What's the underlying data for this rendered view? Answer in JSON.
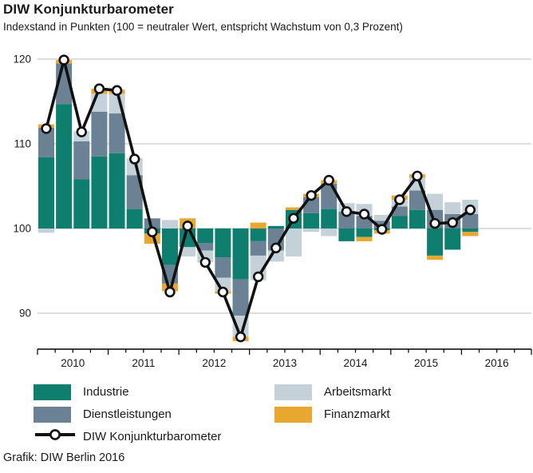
{
  "header": {
    "title": "DIW Konjunkturbarometer",
    "subtitle": "Indexstand in Punkten (100 = neutraler Wert, entspricht Wachstum von 0,3 Prozent)"
  },
  "footer": {
    "credit": "Grafik: DIW Berlin 2016"
  },
  "legend": {
    "items": [
      {
        "label": "Industrie",
        "color": "#0E7F6E",
        "type": "swatch"
      },
      {
        "label": "Dienstleistungen",
        "color": "#6B8294",
        "type": "swatch"
      },
      {
        "label": "Arbeitsmarkt",
        "color": "#C4D1D9",
        "type": "swatch"
      },
      {
        "label": "Finanzmarkt",
        "color": "#E8A72E",
        "type": "swatch"
      },
      {
        "label": "DIW Konjunkturbarometer",
        "color": "#111111",
        "type": "line"
      }
    ]
  },
  "chart_data": {
    "type": "bar",
    "subtype": "stacked-contribution-bars-with-index-line",
    "title": "DIW Konjunkturbarometer",
    "subtitle": "Indexstand in Punkten (100 = neutraler Wert, entspricht Wachstum von 0,3 Prozent)",
    "baseline": 100,
    "ylim": [
      85.7,
      121.3
    ],
    "y_ticks": [
      90,
      100,
      110,
      120
    ],
    "x_year_labels": [
      "2010",
      "2011",
      "2012",
      "2013",
      "2014",
      "2015",
      "2016"
    ],
    "quarters": [
      "2010Q1",
      "2010Q2",
      "2010Q3",
      "2010Q4",
      "2011Q1",
      "2011Q2",
      "2011Q3",
      "2011Q4",
      "2012Q1",
      "2012Q2",
      "2012Q3",
      "2012Q4",
      "2013Q1",
      "2013Q2",
      "2013Q3",
      "2013Q4",
      "2014Q1",
      "2014Q2",
      "2014Q3",
      "2014Q4",
      "2015Q1",
      "2015Q2",
      "2015Q3",
      "2015Q4",
      "2016Q1"
    ],
    "grid": true,
    "legend_position": "bottom",
    "series": [
      {
        "name": "Industrie",
        "color": "#0E7F6E",
        "values": [
          8.4,
          14.7,
          5.8,
          8.5,
          8.9,
          2.3,
          -0.6,
          -4.3,
          -2.2,
          -1.7,
          -3.4,
          -6.0,
          -1.5,
          0.3,
          2.2,
          1.8,
          2.3,
          -1.5,
          -1.0,
          -0.2,
          1.5,
          2.2,
          -3.2,
          -2.5,
          -0.4
        ]
      },
      {
        "name": "Dienstleistungen",
        "color": "#6B8294",
        "values": [
          3.5,
          4.8,
          4.5,
          5.3,
          4.7,
          4.0,
          1.2,
          -2.2,
          0,
          -0.9,
          -2.4,
          -4.3,
          -1.7,
          -2.6,
          0,
          1.9,
          3.0,
          2.0,
          1.5,
          0.9,
          1.1,
          2.3,
          2.2,
          1.7,
          1.7
        ]
      },
      {
        "name": "Arbeitsmarkt",
        "color": "#C4D1D9",
        "values": [
          -0.5,
          0,
          1.2,
          2.1,
          2.3,
          2.0,
          0,
          1.0,
          -1.1,
          -1.4,
          -1.6,
          -2.5,
          -2.9,
          -1.3,
          -3.3,
          -0.4,
          -0.9,
          1.0,
          1.4,
          0.7,
          0.8,
          1.5,
          1.9,
          1.4,
          1.7
        ]
      },
      {
        "name": "Finanzmarkt",
        "color": "#E8A72E",
        "values": [
          0.4,
          0.4,
          0,
          0.6,
          0.5,
          0,
          -1.2,
          -0.9,
          1.2,
          0,
          -0.3,
          -0.5,
          0.7,
          0,
          0.3,
          0.4,
          0.4,
          0,
          -0.5,
          -0.4,
          0.5,
          0.4,
          -0.5,
          0,
          -0.5
        ]
      }
    ],
    "line": {
      "name": "DIW Konjunkturbarometer",
      "color": "#111111",
      "values": [
        111.8,
        119.9,
        111.4,
        116.5,
        116.3,
        108.2,
        99.6,
        92.5,
        100.3,
        96.0,
        92.5,
        87.2,
        94.3,
        97.7,
        101.2,
        103.9,
        105.7,
        102.0,
        101.7,
        99.9,
        103.4,
        106.2,
        100.6,
        100.7,
        102.2
      ]
    }
  }
}
